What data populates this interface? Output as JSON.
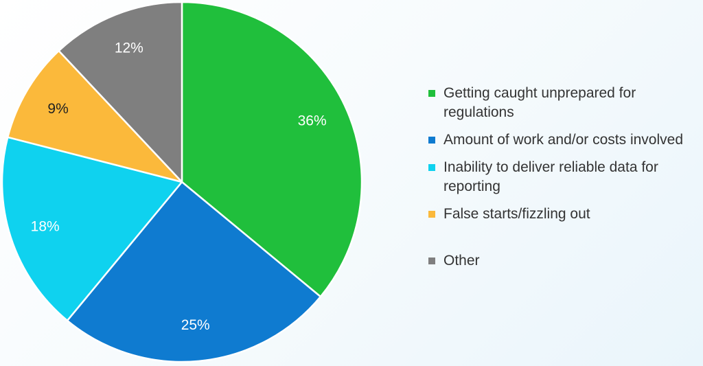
{
  "chart_data": {
    "type": "pie",
    "title": "",
    "start_angle_deg": 0,
    "direction": "clockwise",
    "legend_position": "right",
    "slices": [
      {
        "label": "Getting caught unprepared for regulations",
        "value": 36,
        "display": "36%",
        "color": "#20bf3c",
        "label_color": "#ffffff"
      },
      {
        "label": "Amount of work and/or costs involved",
        "value": 25,
        "display": "25%",
        "color": "#0f7bd0",
        "label_color": "#ffffff"
      },
      {
        "label": "Inability to deliver reliable data for reporting",
        "value": 18,
        "display": "18%",
        "color": "#0fd2ef",
        "label_color": "#ffffff"
      },
      {
        "label": "False starts/fizzling out",
        "value": 9,
        "display": "9%",
        "color": "#fbb93b",
        "label_color": "#222222"
      },
      {
        "label": "Other",
        "value": 12,
        "display": "12%",
        "color": "#7f7f7f",
        "label_color": "#ffffff"
      }
    ]
  }
}
